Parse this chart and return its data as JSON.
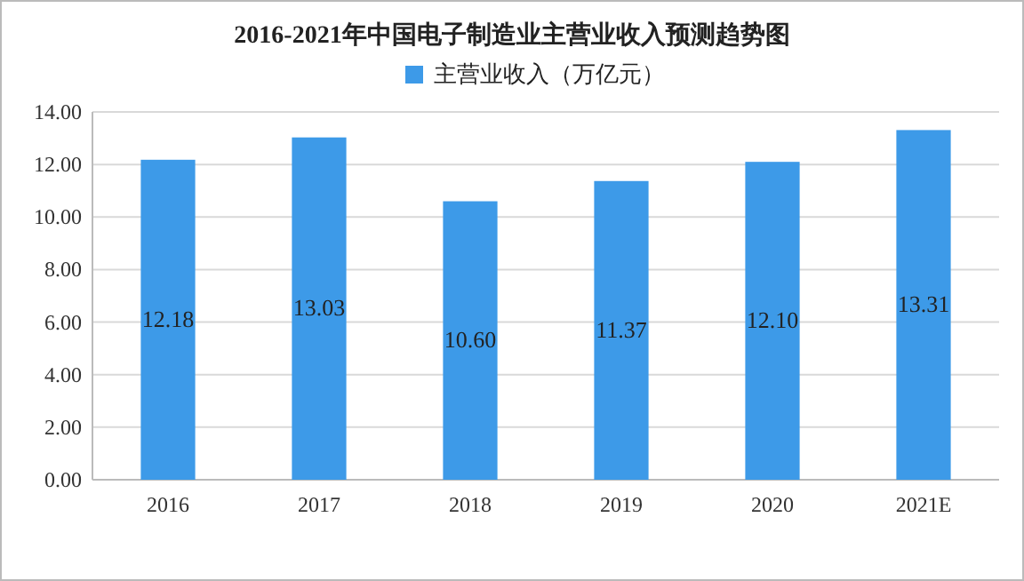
{
  "chart_data": {
    "type": "bar",
    "title": "2016-2021年中国电子制造业主营业收入预测趋势图",
    "categories": [
      "2016",
      "2017",
      "2018",
      "2019",
      "2020",
      "2021E"
    ],
    "series": [
      {
        "name": "主营业收入（万亿元）",
        "color": "#3d9ae8",
        "values": [
          12.18,
          13.03,
          10.6,
          11.37,
          12.1,
          13.31
        ]
      }
    ],
    "value_labels": [
      "12.18",
      "13.03",
      "10.60",
      "11.37",
      "12.10",
      "13.31"
    ],
    "ylim": [
      0,
      14
    ],
    "yticks": [
      {
        "value": 0,
        "label": "0.00"
      },
      {
        "value": 2,
        "label": "2.00"
      },
      {
        "value": 4,
        "label": "4.00"
      },
      {
        "value": 6,
        "label": "6.00"
      },
      {
        "value": 8,
        "label": "8.00"
      },
      {
        "value": 10,
        "label": "10.00"
      },
      {
        "value": 12,
        "label": "12.00"
      },
      {
        "value": 14,
        "label": "14.00"
      }
    ],
    "grid": "y",
    "legend": "top"
  }
}
